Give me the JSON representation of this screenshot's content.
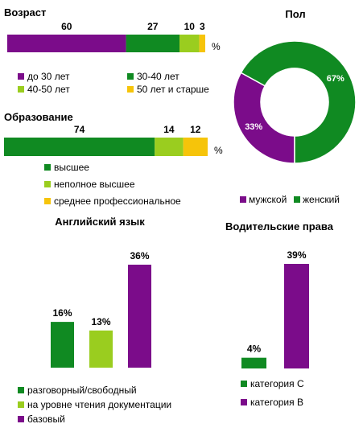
{
  "colors": {
    "purple": "#7b0c8a",
    "dark_green": "#108a22",
    "light_green": "#9acd1f",
    "yellow": "#f6c40a",
    "white": "#ffffff"
  },
  "chart_data": [
    {
      "id": "age",
      "type": "bar",
      "orientation": "horizontal-stacked",
      "title": "Возраст",
      "unit": "%",
      "series": [
        {
          "name": "до 30 лет",
          "value": 60,
          "color": "purple"
        },
        {
          "name": "30-40 лет",
          "value": 27,
          "color": "dark_green"
        },
        {
          "name": "40-50 лет",
          "value": 10,
          "color": "light_green"
        },
        {
          "name": "50 лет и старше",
          "value": 3,
          "color": "yellow"
        }
      ]
    },
    {
      "id": "education",
      "type": "bar",
      "orientation": "horizontal-stacked",
      "title": "Образование",
      "unit": "%",
      "series": [
        {
          "name": "высшее",
          "value": 74,
          "color": "dark_green"
        },
        {
          "name": "неполное высшее",
          "value": 14,
          "color": "light_green"
        },
        {
          "name": "среднее профессиональное",
          "value": 12,
          "color": "yellow"
        }
      ]
    },
    {
      "id": "gender",
      "type": "pie",
      "donut": true,
      "title": "Пол",
      "slices": [
        {
          "name": "мужской",
          "value": 33,
          "label": "33%",
          "color": "purple"
        },
        {
          "name": "женский",
          "value": 67,
          "label": "67%",
          "color": "dark_green"
        }
      ]
    },
    {
      "id": "english",
      "type": "bar",
      "title": "Английский язык",
      "ylim": [
        0,
        36
      ],
      "series": [
        {
          "name": "разговорный/свободный",
          "value": 16,
          "label": "16%",
          "color": "dark_green"
        },
        {
          "name": "на уровне чтения документации",
          "value": 13,
          "label": "13%",
          "color": "light_green"
        },
        {
          "name": "базовый",
          "value": 36,
          "label": "36%",
          "color": "purple"
        }
      ]
    },
    {
      "id": "license",
      "type": "bar",
      "title": "Водительские права",
      "ylim": [
        0,
        39
      ],
      "series": [
        {
          "name": "категория  C",
          "value": 4,
          "label": "4%",
          "color": "dark_green"
        },
        {
          "name": "категория  B",
          "value": 39,
          "label": "39%",
          "color": "purple"
        }
      ]
    }
  ]
}
